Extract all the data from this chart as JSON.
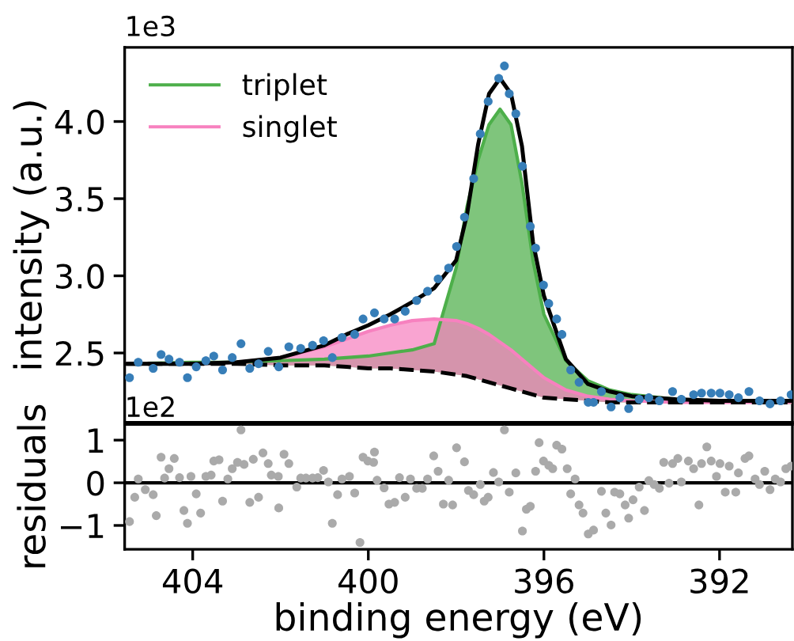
{
  "chart_data": [
    {
      "type": "line",
      "ylabel": "intensity (a.u.)",
      "annotations": [
        "1e3"
      ],
      "xlim": [
        405.55,
        390.34
      ],
      "ylim": [
        2.05,
        4.48
      ],
      "yticks": [
        {
          "value": 2.5,
          "label": "2.5"
        },
        {
          "value": 3.0,
          "label": "3.0"
        },
        {
          "value": 3.5,
          "label": "3.5"
        },
        {
          "value": 4.0,
          "label": "4.0"
        }
      ],
      "tick_labels": "y",
      "legend": "top left",
      "grid": false,
      "x": [
        405.5,
        404,
        403,
        402,
        401,
        400.5,
        400,
        399.5,
        399,
        398.5,
        398,
        397.75,
        397.5,
        397.25,
        397,
        396.75,
        396.5,
        396.25,
        396,
        395.5,
        395,
        394.5,
        394,
        393,
        392,
        391,
        390.4
      ],
      "series": [
        {
          "type": "scatter",
          "color": "#377eb8",
          "marker": "circle",
          "x": [
            405.44,
            405.24,
            404.9,
            404.72,
            404.54,
            404.3,
            404.12,
            403.92,
            403.7,
            403.52,
            403.32,
            403.1,
            402.9,
            402.7,
            402.5,
            402.28,
            402.04,
            401.81,
            401.54,
            401.27,
            401.02,
            400.82,
            400.6,
            400.31,
            400.12,
            399.86,
            399.64,
            399.4,
            399.16,
            398.9,
            398.65,
            398.41,
            398.17,
            397.99,
            397.81,
            397.6,
            397.45,
            397.27,
            397.03,
            396.9,
            396.79,
            396.64,
            396.49,
            396.31,
            396.19,
            396.01,
            395.89,
            395.71,
            395.59,
            395.39,
            395.2,
            394.99,
            394.87,
            394.69,
            394.47,
            394.27,
            394.07,
            393.83,
            393.61,
            393.37,
            393.07,
            392.87,
            392.59,
            392.41,
            392.19,
            391.99,
            391.78,
            391.57,
            391.33,
            391.09,
            390.85,
            390.61,
            390.37
          ],
          "values": [
            2.34,
            2.44,
            2.4,
            2.49,
            2.46,
            2.44,
            2.34,
            2.41,
            2.45,
            2.48,
            2.39,
            2.47,
            2.56,
            2.4,
            2.43,
            2.51,
            2.41,
            2.54,
            2.53,
            2.55,
            2.58,
            2.47,
            2.6,
            2.62,
            2.72,
            2.76,
            2.72,
            2.72,
            2.77,
            2.84,
            2.9,
            2.98,
            3.05,
            3.19,
            3.38,
            3.63,
            3.92,
            4.13,
            4.28,
            4.36,
            4.18,
            4.05,
            3.71,
            3.32,
            3.18,
            2.94,
            2.82,
            2.72,
            2.62,
            2.39,
            2.31,
            2.18,
            2.18,
            2.25,
            2.15,
            2.21,
            2.14,
            2.2,
            2.21,
            2.19,
            2.25,
            2.2,
            2.23,
            2.24,
            2.24,
            2.24,
            2.23,
            2.21,
            2.25,
            2.19,
            2.17,
            2.19,
            2.23
          ]
        },
        {
          "type": "area",
          "name": "triplet",
          "color": "#4daf4a",
          "values": [
            2.43,
            2.44,
            2.44,
            2.45,
            2.46,
            2.47,
            2.48,
            2.5,
            2.52,
            2.56,
            3.05,
            3.45,
            3.75,
            3.98,
            4.08,
            3.98,
            3.6,
            3.1,
            2.75,
            2.45,
            2.32,
            2.26,
            2.23,
            2.2,
            2.19,
            2.18,
            2.18
          ]
        },
        {
          "type": "area",
          "name": "singlet",
          "color": "#f781bf",
          "values": [
            2.43,
            2.43,
            2.44,
            2.47,
            2.54,
            2.59,
            2.64,
            2.68,
            2.71,
            2.72,
            2.71,
            2.69,
            2.66,
            2.62,
            2.57,
            2.52,
            2.46,
            2.4,
            2.34,
            2.26,
            2.22,
            2.2,
            2.19,
            2.18,
            2.18,
            2.18,
            2.18
          ]
        },
        {
          "type": "line",
          "color": "#000000",
          "line_style": "dashed",
          "values": [
            2.43,
            2.43,
            2.43,
            2.42,
            2.42,
            2.41,
            2.4,
            2.4,
            2.39,
            2.38,
            2.36,
            2.35,
            2.33,
            2.31,
            2.29,
            2.27,
            2.25,
            2.23,
            2.21,
            2.2,
            2.19,
            2.18,
            2.18,
            2.18,
            2.18,
            2.18,
            2.18
          ]
        },
        {
          "type": "line",
          "color": "#000000",
          "line_style": "solid",
          "values": [
            2.43,
            2.43,
            2.44,
            2.47,
            2.55,
            2.62,
            2.68,
            2.75,
            2.83,
            2.92,
            3.1,
            3.4,
            3.85,
            4.18,
            4.28,
            4.18,
            3.84,
            3.22,
            2.87,
            2.46,
            2.3,
            2.25,
            2.22,
            2.2,
            2.19,
            2.19,
            2.19
          ]
        }
      ]
    },
    {
      "type": "scatter",
      "ylabel": "residuals",
      "xlabel": "binding energy (eV)",
      "annotations": [
        "1e2"
      ],
      "xlim": [
        405.55,
        390.34
      ],
      "ylim": [
        -1.56,
        1.37
      ],
      "xticks": [
        404,
        400,
        396,
        392
      ],
      "yticks": [
        {
          "value": -1,
          "label": "−1"
        },
        {
          "value": 0,
          "label": "0"
        },
        {
          "value": 1,
          "label": "1"
        }
      ],
      "grid": false,
      "legend": false,
      "marker": "circle",
      "ref_lines": [
        {
          "axis": "y",
          "value": 0,
          "color": "#000000"
        }
      ],
      "series": [
        {
          "color": "#aaaaaa",
          "x": [
            405.44,
            405.32,
            405.24,
            405.08,
            404.9,
            404.83,
            404.72,
            404.64,
            404.54,
            404.42,
            404.3,
            404.2,
            404.12,
            404.04,
            403.92,
            403.82,
            403.7,
            403.58,
            403.52,
            403.4,
            403.32,
            403.2,
            403.1,
            402.98,
            402.9,
            402.83,
            402.7,
            402.62,
            402.5,
            402.4,
            402.28,
            402.21,
            402.05,
            402.04,
            401.92,
            401.81,
            401.63,
            401.54,
            401.42,
            401.27,
            401.15,
            401.02,
            400.91,
            400.82,
            400.7,
            400.6,
            400.43,
            400.31,
            400.19,
            400.12,
            400.01,
            399.86,
            399.88,
            399.8,
            399.64,
            399.53,
            399.4,
            399.29,
            399.16,
            399.04,
            398.9,
            398.77,
            398.65,
            398.51,
            398.41,
            398.29,
            398.17,
            398.08,
            397.99,
            397.81,
            397.72,
            397.6,
            397.45,
            397.36,
            397.27,
            397.15,
            397.03,
            396.9,
            396.79,
            396.64,
            396.49,
            396.4,
            396.31,
            396.19,
            396.11,
            396.01,
            395.89,
            395.8,
            395.71,
            395.59,
            395.47,
            395.39,
            395.29,
            395.2,
            395.11,
            394.99,
            394.87,
            394.69,
            394.59,
            394.47,
            394.39,
            394.27,
            394.15,
            394.07,
            393.97,
            393.83,
            393.71,
            393.61,
            393.49,
            393.37,
            393.27,
            393.15,
            393.07,
            392.95,
            392.87,
            392.71,
            392.59,
            392.47,
            392.41,
            392.29,
            392.19,
            392.07,
            391.99,
            391.87,
            391.78,
            391.63,
            391.57,
            391.42,
            391.33,
            391.19,
            391.09,
            390.97,
            390.85,
            390.73,
            390.61,
            390.49,
            390.37
          ],
          "values": [
            -0.91,
            -0.34,
            0.09,
            -0.16,
            -0.28,
            -0.77,
            0.6,
            0.11,
            0.33,
            0.57,
            0.12,
            -0.65,
            -0.95,
            0.15,
            -0.26,
            -0.71,
            0.15,
            0.18,
            0.51,
            0.54,
            -0.43,
            0.09,
            0.33,
            0.48,
            1.24,
            0.43,
            -0.46,
            0.55,
            -0.34,
            0.7,
            0.45,
            0.18,
            0.15,
            -0.59,
            0.67,
            0.45,
            -0.1,
            0.11,
            0.11,
            0.11,
            0.12,
            0.29,
            0.02,
            -0.95,
            -0.28,
            0.09,
            0.15,
            -0.24,
            -1.4,
            0.6,
            0.51,
            0.72,
            0.48,
            0.06,
            -0.12,
            -0.5,
            -0.46,
            0.12,
            -0.34,
            0.09,
            -0.13,
            -0.13,
            0.09,
            0.63,
            0.27,
            -0.5,
            0.06,
            -0.52,
            0.82,
            0.49,
            -0.18,
            -0.28,
            -0.04,
            -0.43,
            -0.34,
            0.24,
            0.02,
            1.24,
            -0.22,
            0.23,
            -1.13,
            -0.62,
            -0.55,
            0.27,
            0.94,
            0.51,
            0.41,
            0.33,
            0.88,
            0.79,
            0.33,
            -0.26,
            0.09,
            -0.52,
            -0.71,
            -1.2,
            -1.11,
            -0.2,
            -0.71,
            -0.99,
            -0.22,
            -0.26,
            -0.52,
            -0.83,
            -0.4,
            -0.1,
            -0.65,
            0.05,
            -0.04,
            -0.13,
            0.48,
            -0.01,
            0.45,
            0.57,
            0.02,
            0.51,
            0.33,
            -0.52,
            0.45,
            0.84,
            0.51,
            0.15,
            0.45,
            -0.22,
            0.39,
            -0.22,
            0.23,
            0.57,
            0.63,
            0.09,
            -0.04,
            0.27,
            -0.16,
            0.09,
            0.02,
            0.33,
            0.39
          ]
        }
      ]
    }
  ]
}
